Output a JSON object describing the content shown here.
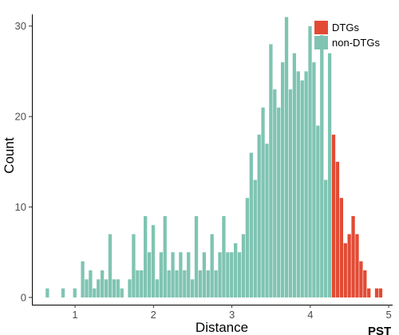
{
  "chart_data": {
    "type": "bar",
    "title": "",
    "xlabel": "Distance",
    "ylabel": "Count",
    "xlim": [
      0.45,
      5.05
    ],
    "ylim": [
      -0.8,
      31.3
    ],
    "x_ticks": [
      "1",
      "2",
      "3",
      "4",
      "5"
    ],
    "y_ticks": [
      "0",
      "10",
      "20",
      "30"
    ],
    "grid": false,
    "legend_position": "top-right",
    "bin_width": 0.05,
    "colors": {
      "DTGs": "#e24a33",
      "non-DTGs": "#7fc4b2"
    },
    "series": [
      {
        "name": "non-DTGs",
        "x": [
          0.65,
          0.85,
          1.0,
          1.1,
          1.15,
          1.2,
          1.25,
          1.3,
          1.35,
          1.4,
          1.45,
          1.5,
          1.55,
          1.6,
          1.7,
          1.75,
          1.8,
          1.85,
          1.9,
          1.95,
          2.0,
          2.05,
          2.1,
          2.15,
          2.2,
          2.25,
          2.3,
          2.35,
          2.4,
          2.45,
          2.5,
          2.55,
          2.6,
          2.65,
          2.7,
          2.75,
          2.8,
          2.85,
          2.9,
          2.95,
          3.0,
          3.05,
          3.1,
          3.15,
          3.2,
          3.25,
          3.3,
          3.35,
          3.4,
          3.45,
          3.5,
          3.55,
          3.6,
          3.65,
          3.7,
          3.75,
          3.8,
          3.85,
          3.9,
          3.95,
          4.0,
          4.05,
          4.1,
          4.15,
          4.2,
          4.25
        ],
        "values": [
          1,
          1,
          1,
          4,
          2,
          3,
          1,
          2,
          3,
          2,
          7,
          2,
          2,
          1,
          2,
          7,
          3,
          3,
          9,
          5,
          8,
          2,
          5,
          9,
          3,
          5,
          3,
          5,
          3,
          5,
          2,
          9,
          3,
          5,
          3,
          7,
          3,
          5,
          9,
          5,
          5,
          6,
          5,
          7,
          11,
          16,
          13,
          18,
          21,
          17,
          28,
          23,
          21,
          26,
          31,
          23,
          27,
          25,
          24,
          25,
          30,
          26,
          19,
          29,
          13,
          27
        ]
      },
      {
        "name": "DTGs",
        "x": [
          4.3,
          4.35,
          4.4,
          4.45,
          4.5,
          4.55,
          4.6,
          4.65,
          4.7,
          4.75,
          4.85,
          4.9
        ],
        "values": [
          18,
          15,
          11,
          6,
          7,
          9,
          7,
          4,
          3,
          1,
          1,
          1
        ]
      }
    ]
  },
  "stray_text": {
    "corner_label": "PST"
  }
}
